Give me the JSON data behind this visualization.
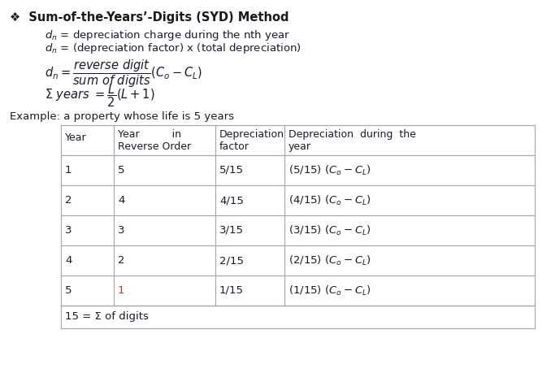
{
  "title": "❖  Sum-of-the-Years’-Digits (SYD) Method",
  "line1": "$d_n$ = depreciation charge during the nth year",
  "line2": "$d_n$ = (depreciation factor) x (total depreciation)",
  "example_text": "Example: a property whose life is 5 years",
  "table_years": [
    "1",
    "2",
    "3",
    "4",
    "5"
  ],
  "reverse_order": [
    "5",
    "4",
    "3",
    "2",
    "1"
  ],
  "factors": [
    "5/15",
    "4/15",
    "3/15",
    "2/15",
    "1/15"
  ],
  "depreciation_text": [
    "(5/15) ($C_o - C_L$)",
    "(4/15) ($C_o - C_L$)",
    "(3/15) ($C_o - C_L$)",
    "(2/15) ($C_o - C_L$)",
    "(1/15) ($C_o - C_L$)"
  ],
  "footer": "15 = Σ of digits",
  "bg_color": "#ffffff",
  "text_color": "#1a1a2e",
  "title_color": "#1a1a1a",
  "border_color": "#aaaaaa",
  "highlight_color": "#c0392b",
  "title_fontsize": 10.5,
  "body_fontsize": 9.5,
  "formula_fontsize": 10.5,
  "table_fontsize": 9.0
}
